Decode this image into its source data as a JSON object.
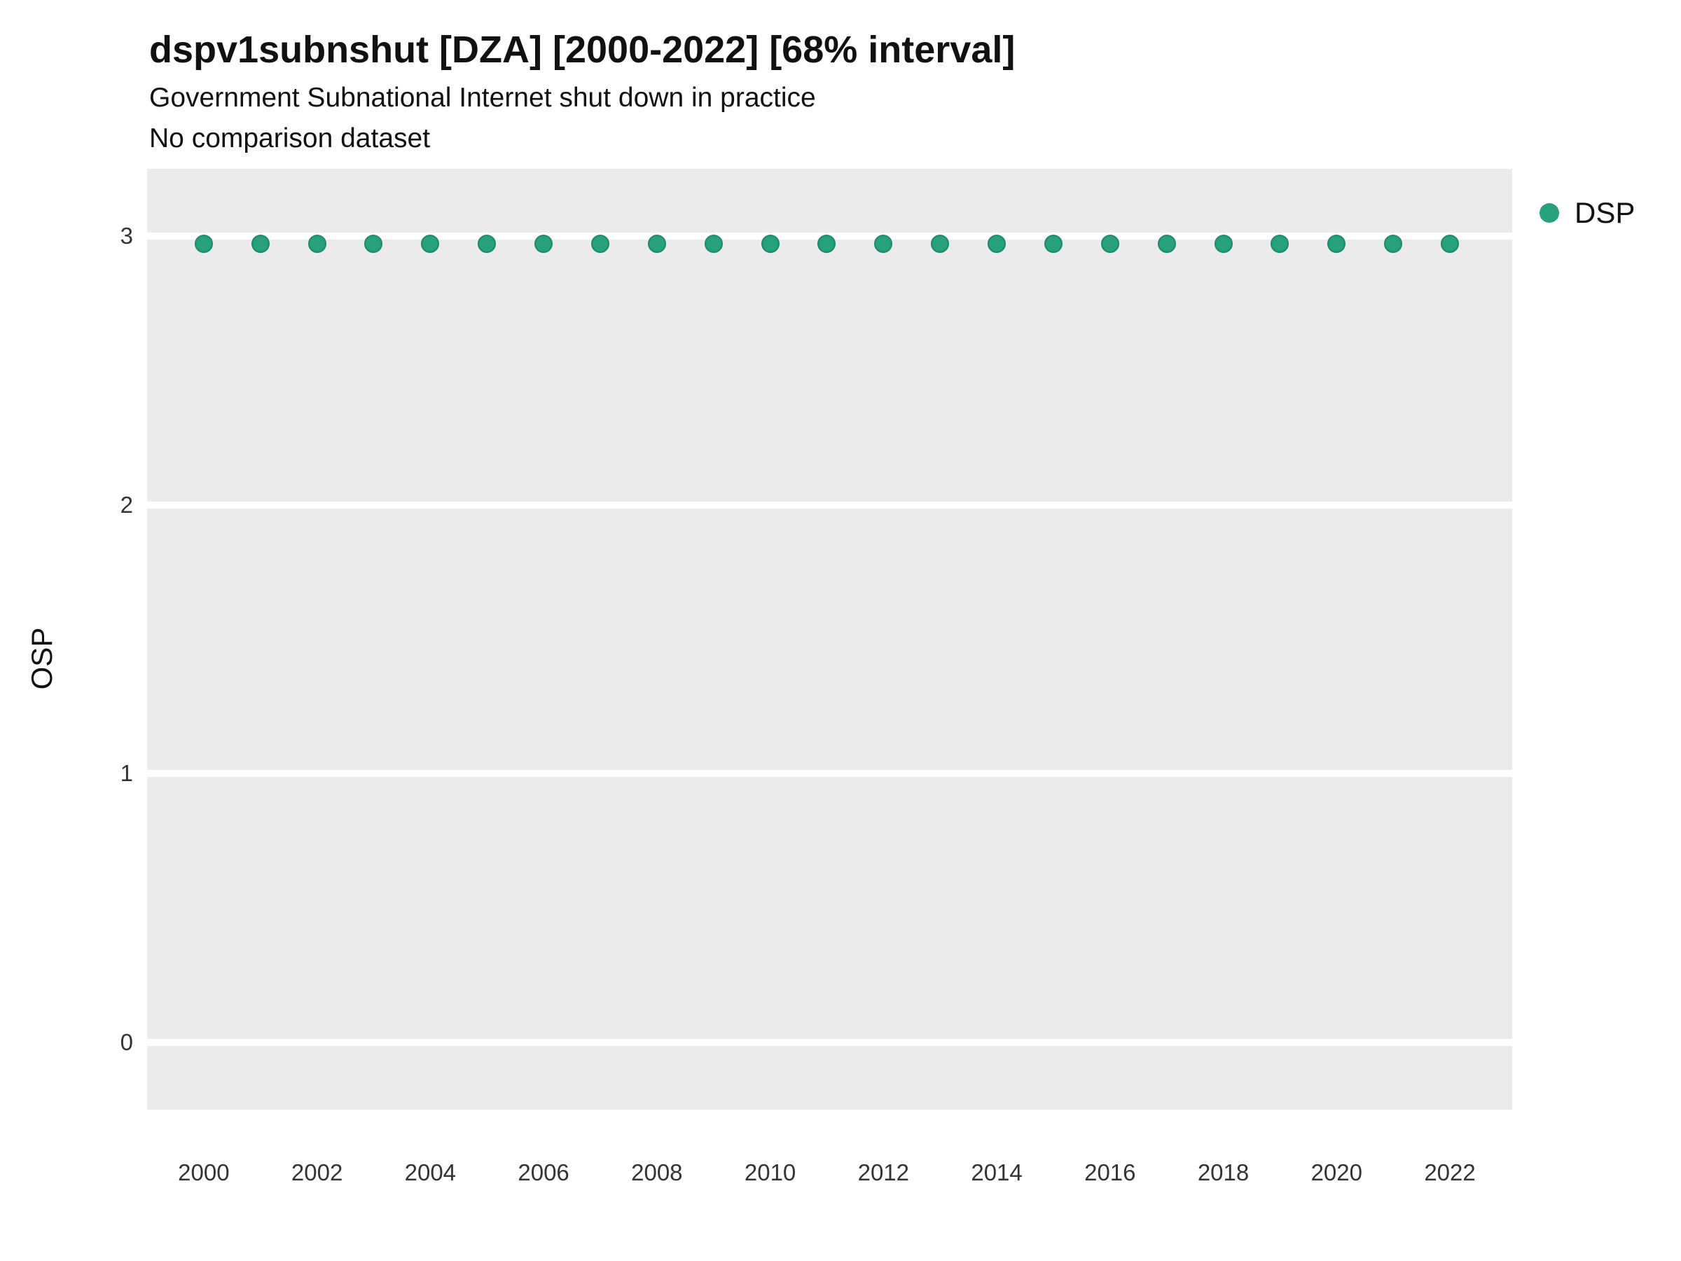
{
  "header": {
    "title": "dspv1subnshut [DZA] [2000-2022] [68% interval]",
    "subtitle": "Government Subnational Internet shut down in practice",
    "subtitle2": "No comparison dataset"
  },
  "legend": {
    "label": "DSP",
    "position": "right"
  },
  "colors": {
    "point": "#26A17B",
    "point_edge": "#1D8A66",
    "panel_background": "#EBEBEB",
    "gridline": "#FFFFFF",
    "text": "#111111"
  },
  "chart_data": {
    "type": "scatter",
    "title": "dspv1subnshut [DZA] [2000-2022] [68% interval]",
    "subtitle": "Government Subnational Internet shut down in practice",
    "note": "No comparison dataset",
    "xlabel": "",
    "ylabel": "OSP",
    "grid": true,
    "legend_position": "right",
    "xlim": [
      1999,
      2023.1
    ],
    "ylim": [
      -0.25,
      3.25
    ],
    "xticks": [
      2000,
      2002,
      2004,
      2006,
      2008,
      2010,
      2012,
      2014,
      2016,
      2018,
      2020,
      2022
    ],
    "yticks": [
      0,
      1,
      2,
      3
    ],
    "series": [
      {
        "name": "DSP",
        "color": "#26A17B",
        "x": [
          2000,
          2001,
          2002,
          2003,
          2004,
          2005,
          2006,
          2007,
          2008,
          2009,
          2010,
          2011,
          2012,
          2013,
          2014,
          2015,
          2016,
          2017,
          2018,
          2019,
          2020,
          2021,
          2022
        ],
        "y": [
          2.97,
          2.97,
          2.97,
          2.97,
          2.97,
          2.97,
          2.97,
          2.97,
          2.97,
          2.97,
          2.97,
          2.97,
          2.97,
          2.97,
          2.97,
          2.97,
          2.97,
          2.97,
          2.97,
          2.97,
          2.97,
          2.97,
          2.97
        ]
      }
    ]
  }
}
